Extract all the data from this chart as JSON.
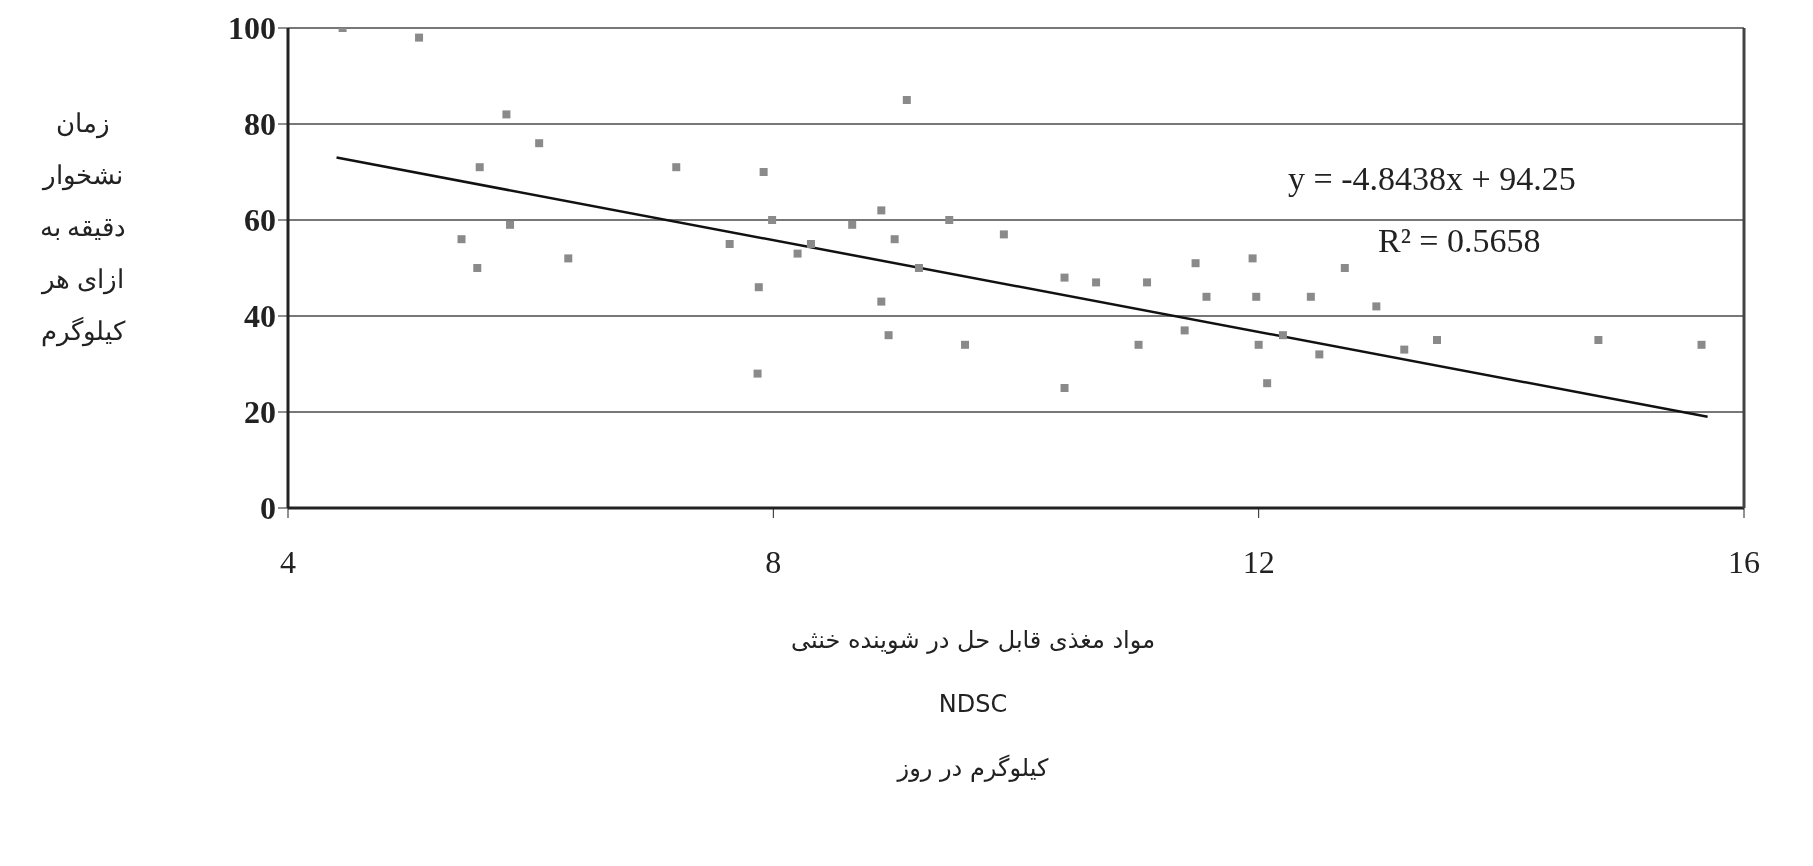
{
  "chart_data": {
    "type": "scatter",
    "xlabel": "مواد مغذی قابل حل در شوینده خنثی\nNDSC\nکیلوگرم در روز",
    "ylabel": "زمان نشخوار دقیقه به ازای هر کیلوگرم",
    "annotations": [
      "y = -4.8438x + 94.25",
      "R² = 0.5658"
    ],
    "xlim": [
      4,
      16
    ],
    "xticks": [
      4,
      8,
      12,
      16
    ],
    "ylim": [
      0,
      100
    ],
    "yticks": [
      0,
      20,
      40,
      60,
      80,
      100
    ],
    "grid": "y",
    "marker": "square",
    "series": [
      {
        "color": "#8a8a8a",
        "x": [
          4.45,
          5.08,
          5.8,
          6.07,
          5.58,
          5.83,
          5.43,
          5.56,
          6.31,
          7.2,
          7.92,
          7.64,
          7.99,
          8.2,
          8.31,
          8.65,
          8.89,
          9.0,
          9.2,
          9.45,
          9.9,
          7.88,
          8.89,
          8.95,
          9.58,
          7.87,
          9.1,
          10.4,
          10.4,
          10.66,
          11.08,
          11.01,
          11.39,
          11.48,
          11.95,
          12.71,
          11.57,
          11.98,
          12.43,
          12.97,
          12.0,
          12.2,
          12.5,
          12.07,
          13.2,
          13.47,
          14.8,
          15.65
        ],
        "values": [
          100,
          98,
          82,
          76,
          71,
          59,
          56,
          50,
          52,
          71,
          70,
          55,
          60,
          53,
          55,
          59,
          62,
          56,
          50,
          60,
          57,
          46,
          43,
          36,
          34,
          28,
          85,
          25,
          48,
          47,
          47,
          34,
          37,
          51,
          52,
          50,
          44,
          44,
          44,
          42,
          34,
          36,
          32,
          26,
          33,
          35,
          35,
          34
        ]
      },
      {
        "type": "line",
        "color": "#111111",
        "marker": "none",
        "x": [
          4.4,
          15.7
        ],
        "values": [
          73,
          19
        ]
      }
    ]
  }
}
